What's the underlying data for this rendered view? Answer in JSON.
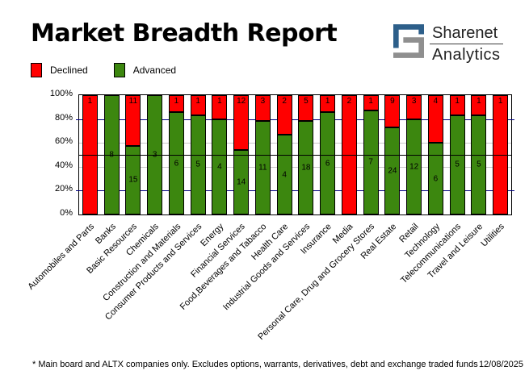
{
  "header": {
    "title": "Market Breadth Report",
    "logo": {
      "line1": "Sharenet",
      "line2": "Analytics",
      "blue": "#2d5f8a",
      "gray": "#8f8f8f"
    }
  },
  "footer": {
    "note": "* Main board and ALTX companies only. Excludes options, warrants, derivatives, debt and exchange traded funds",
    "date": "12/08/2025"
  },
  "chart_data": {
    "type": "bar",
    "stacked": true,
    "normalized": "percent",
    "title": "Market Breadth Report",
    "xlabel": "",
    "ylabel": "",
    "ylim": [
      0,
      100
    ],
    "ytick_percents": [
      0,
      20,
      40,
      60,
      80,
      100
    ],
    "ytick_labels": [
      "0%",
      "20%",
      "40%",
      "60%",
      "80%",
      "100%"
    ],
    "legend_position": "top-left",
    "gridlines": {
      "navy_at": [
        20,
        80
      ],
      "gray_at": [
        40,
        60
      ],
      "black_at": [
        50
      ],
      "navy_color": "#00007f",
      "gray_color": "#c9c9c9",
      "black_color": "#000000"
    },
    "categories": [
      "Automobiles and Parts",
      "Banks",
      "Basic Resources",
      "Chemicals",
      "Construction and Materials",
      "Consumer Products and Services",
      "Energy",
      "Financial Services",
      "Food,Beverages and Tabacco",
      "Health Care",
      "Industrial Goods and Services",
      "Insurance",
      "Media",
      "Personal Care, Drug and Grocery Stores",
      "Real Estate",
      "Retail",
      "Technology",
      "Telecommunications",
      "Travel and Leisure",
      "Utilities"
    ],
    "series": [
      {
        "name": "Declined",
        "color": "#ff0000",
        "values": [
          1,
          0,
          11,
          0,
          1,
          1,
          1,
          12,
          3,
          2,
          5,
          1,
          2,
          1,
          9,
          3,
          4,
          1,
          1,
          1
        ]
      },
      {
        "name": "Advanced",
        "color": "#3c870f",
        "values": [
          0,
          8,
          15,
          3,
          6,
          5,
          4,
          14,
          11,
          4,
          18,
          6,
          0,
          7,
          24,
          12,
          6,
          5,
          5,
          0
        ]
      }
    ]
  }
}
